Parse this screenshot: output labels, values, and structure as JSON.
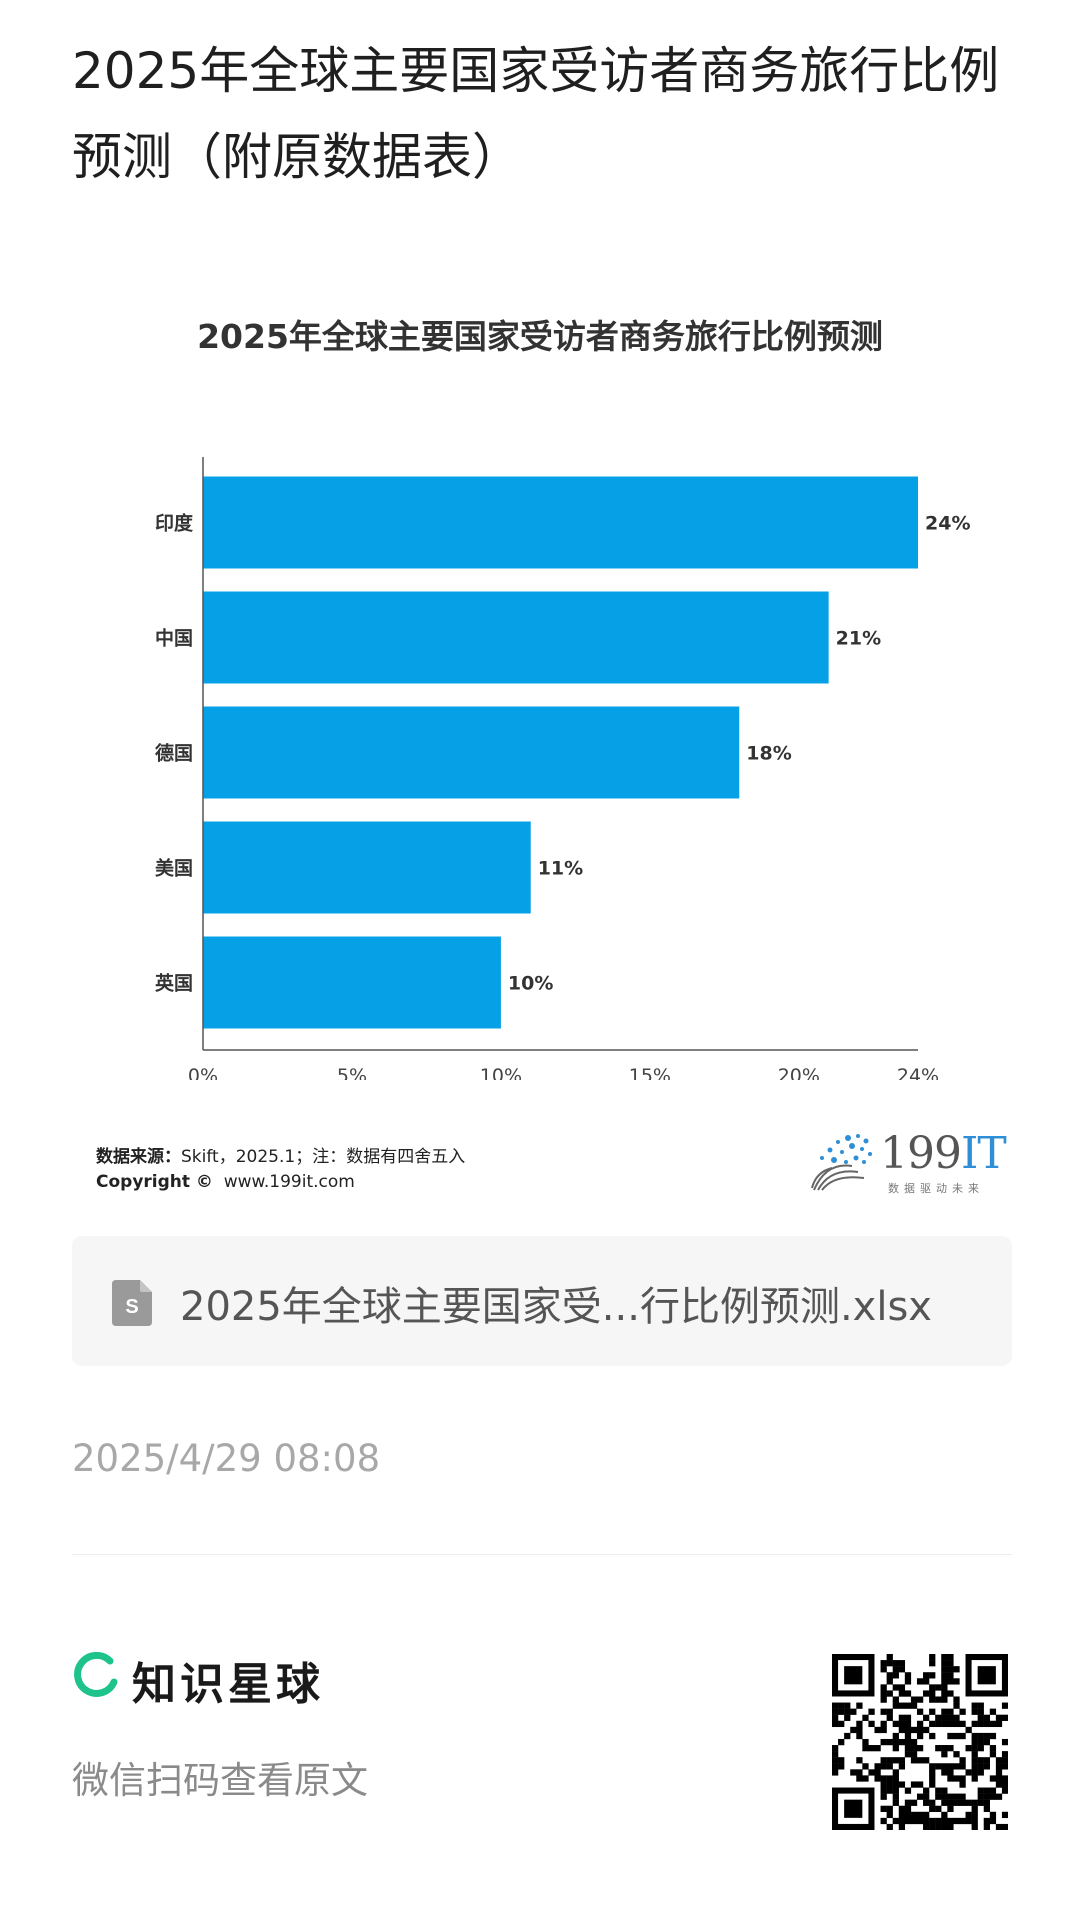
{
  "page": {
    "title": "2025年全球主要国家受访者商务旅行比例预测（附原数据表）"
  },
  "chart_data": {
    "type": "bar",
    "orientation": "horizontal",
    "title": "2025年全球主要国家受访者商务旅行比例预测",
    "categories": [
      "印度",
      "中国",
      "德国",
      "美国",
      "英国"
    ],
    "values": [
      24,
      21,
      18,
      11,
      10
    ],
    "value_labels": [
      "24%",
      "21%",
      "18%",
      "11%",
      "10%"
    ],
    "xlim": [
      0,
      24
    ],
    "xticks": [
      "0%",
      "5%",
      "10%",
      "15%",
      "20%",
      "24%"
    ],
    "xtick_values": [
      0,
      5,
      10,
      15,
      20,
      24
    ],
    "bar_color": "#05a0e6",
    "grid": false,
    "source_label": "数据来源：",
    "source_text": "Skift，2025.1；注：数据有四舍五入",
    "copyright_label": "Copyright ©",
    "copyright_text": "www.199it.com"
  },
  "watermark": {
    "logo_text_num": "199",
    "logo_text_it": "IT",
    "logo_sub": "数据驱动未来"
  },
  "attachment": {
    "file_name": "2025年全球主要国家受...行比例预测.xlsx",
    "icon": "spreadsheet-file-icon",
    "icon_letter": "S"
  },
  "meta": {
    "timestamp": "2025/4/29 08:08"
  },
  "footer": {
    "brand_name": "知识星球",
    "brand_icon": "zsxq-logo-icon",
    "brand_color": "#1ec38b",
    "scan_hint": "微信扫码查看原文"
  }
}
